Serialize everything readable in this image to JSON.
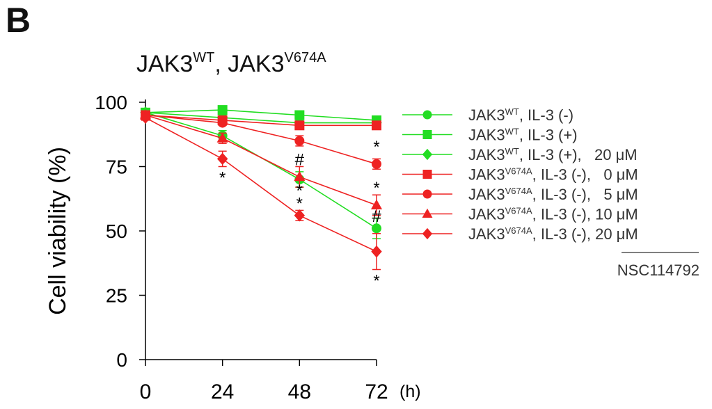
{
  "panel_label": "B",
  "chart_data": {
    "type": "line",
    "title_parts": [
      {
        "text": "JAK3",
        "sup": "WT"
      },
      {
        "text": ", JAK3",
        "sup": "V674A"
      }
    ],
    "xlabel": "",
    "x_unit_label": "(h)",
    "ylabel": "Cell viability (%)",
    "x": [
      0,
      24,
      48,
      72
    ],
    "xlim": [
      0,
      72
    ],
    "ylim": [
      0,
      100
    ],
    "yticks": [
      0,
      25,
      50,
      75,
      100
    ],
    "xticks": [
      0,
      24,
      48,
      72
    ],
    "grid": false,
    "legend_position": "right",
    "legend_group_label": "NSC114792",
    "series": [
      {
        "name": "JAK3WT, IL-3 (-)",
        "name_base": "JAK3",
        "name_sup": "WT",
        "name_rest": ", IL-3 (-)",
        "color": "#22dd22",
        "marker": "circle",
        "values": [
          96,
          87,
          70,
          51
        ],
        "errors": [
          1,
          2,
          3,
          4
        ]
      },
      {
        "name": "JAK3WT, IL-3 (+)",
        "name_base": "JAK3",
        "name_sup": "WT",
        "name_rest": ", IL-3 (+)",
        "color": "#22dd22",
        "marker": "square",
        "values": [
          96,
          97,
          95,
          93
        ],
        "errors": [
          1,
          1,
          1,
          1
        ]
      },
      {
        "name": "JAK3WT, IL-3 (+), 20 μM",
        "name_base": "JAK3",
        "name_sup": "WT",
        "name_rest": ", IL-3 (+),   20 μM",
        "color": "#22dd22",
        "marker": "diamond",
        "values": [
          96,
          94,
          92,
          92
        ],
        "errors": [
          1,
          1,
          1,
          1
        ]
      },
      {
        "name": "JAK3V674A, IL-3 (-), 0 μM",
        "name_base": "JAK3",
        "name_sup": "V674A",
        "name_rest": ", IL-3 (-),   0 μM",
        "color": "#ee2222",
        "marker": "square",
        "values": [
          95,
          93,
          91,
          91
        ],
        "errors": [
          1,
          1,
          1,
          1
        ]
      },
      {
        "name": "JAK3V674A, IL-3 (-), 5 μM",
        "name_base": "JAK3",
        "name_sup": "V674A",
        "name_rest": ", IL-3 (-),   5 μM",
        "color": "#ee2222",
        "marker": "circle",
        "values": [
          95,
          92,
          85,
          76
        ],
        "errors": [
          1,
          1,
          2,
          2
        ]
      },
      {
        "name": "JAK3V674A, IL-3 (-), 10 μM",
        "name_base": "JAK3",
        "name_sup": "V674A",
        "name_rest": ", IL-3 (-), 10 μM",
        "color": "#ee2222",
        "marker": "triangle",
        "values": [
          95,
          86,
          71,
          60
        ],
        "errors": [
          1,
          2,
          4,
          4
        ]
      },
      {
        "name": "JAK3V674A, IL-3 (-), 20 μM",
        "name_base": "JAK3",
        "name_sup": "V674A",
        "name_rest": ", IL-3 (-), 20 μM",
        "color": "#ee2222",
        "marker": "diamond",
        "values": [
          94,
          78,
          56,
          42
        ],
        "errors": [
          1,
          3,
          2,
          7
        ]
      }
    ],
    "annotations": [
      {
        "text": "*",
        "x": 24,
        "y": 71
      },
      {
        "text": "#",
        "x": 48,
        "y": 78
      },
      {
        "text": "*",
        "x": 48,
        "y": 66
      },
      {
        "text": "*",
        "x": 48,
        "y": 61
      },
      {
        "text": "*",
        "x": 72,
        "y": 83
      },
      {
        "text": "*",
        "x": 72,
        "y": 67
      },
      {
        "text": "#",
        "x": 72,
        "y": 56
      },
      {
        "text": "*",
        "x": 72,
        "y": 31
      }
    ]
  }
}
